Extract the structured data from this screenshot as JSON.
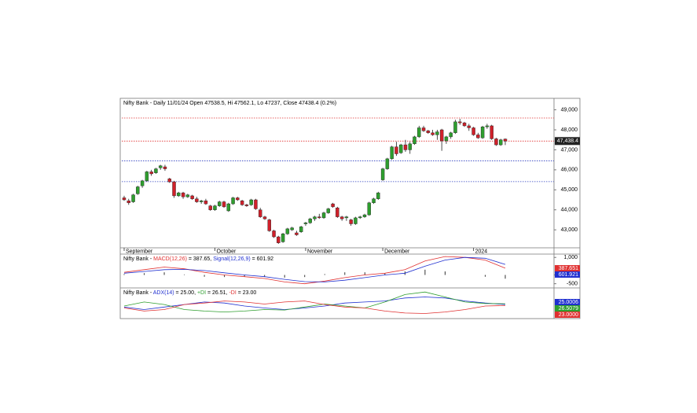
{
  "chart_data": [
    {
      "type": "candlestick",
      "title": "Nifty Bank - Daily 11/01/24 Open 47538.5, Hi 47562.1, Lo 47237, Close 47438.4 (0.2%)",
      "last_label": "47,438.4",
      "categories": [
        "September",
        null,
        null,
        null,
        null,
        null,
        null,
        null,
        null,
        null,
        null,
        null,
        null,
        null,
        null,
        null,
        null,
        null,
        null,
        null,
        "October",
        null,
        null,
        null,
        null,
        null,
        null,
        null,
        null,
        null,
        null,
        null,
        null,
        null,
        null,
        null,
        null,
        null,
        null,
        null,
        "November",
        null,
        null,
        null,
        null,
        null,
        null,
        null,
        null,
        null,
        null,
        null,
        null,
        null,
        null,
        null,
        null,
        "December",
        null,
        null,
        null,
        null,
        null,
        null,
        null,
        null,
        null,
        null,
        null,
        null,
        null,
        null,
        null,
        null,
        null,
        null,
        null,
        "2024",
        null,
        null,
        null,
        null,
        null,
        null,
        null
      ],
      "open": [
        44600,
        44450,
        44400,
        44800,
        45200,
        45450,
        45900,
        45850,
        46100,
        46150,
        45550,
        45400,
        44700,
        44850,
        44650,
        44700,
        44550,
        44400,
        44450,
        44200,
        44000,
        44200,
        44400,
        43950,
        44300,
        44600,
        44450,
        44250,
        44250,
        44500,
        44000,
        43650,
        43500,
        42950,
        42650,
        42400,
        42800,
        43000,
        42850,
        42900,
        43300,
        43350,
        43550,
        43650,
        43600,
        43850,
        44300,
        44100,
        43650,
        43600,
        43500,
        43300,
        43600,
        43650,
        43750,
        44350,
        44550,
        45500,
        46050,
        46550,
        47150,
        46850,
        47250,
        47000,
        47300,
        47650,
        48100,
        47950,
        47850,
        47750,
        48000,
        47450,
        47650,
        47850,
        48400,
        48350,
        48200,
        48100,
        47750,
        47600,
        48150,
        48200,
        47550,
        47250,
        47538.5
      ],
      "high": [
        44700,
        44550,
        44800,
        45200,
        45500,
        45950,
        46000,
        46100,
        46250,
        46250,
        45600,
        45450,
        44900,
        44900,
        44800,
        44750,
        44650,
        44500,
        44550,
        44250,
        44250,
        44450,
        44450,
        44350,
        44650,
        44650,
        44500,
        44300,
        44550,
        44550,
        44100,
        43700,
        43550,
        43000,
        42700,
        42850,
        43100,
        43150,
        42950,
        43200,
        43400,
        43600,
        43700,
        43800,
        43900,
        44100,
        44350,
        44150,
        43700,
        43700,
        43550,
        43650,
        43700,
        43800,
        44400,
        44600,
        44900,
        46100,
        46600,
        47200,
        47400,
        47300,
        47500,
        47400,
        47700,
        48200,
        48200,
        48000,
        48000,
        48000,
        48050,
        47700,
        47900,
        48500,
        48550,
        48400,
        48300,
        48150,
        47850,
        48200,
        48300,
        48250,
        47600,
        47550,
        47562.1
      ],
      "low": [
        44450,
        44250,
        44350,
        44750,
        45100,
        45400,
        45700,
        45800,
        46000,
        45950,
        45350,
        44600,
        44650,
        44550,
        44600,
        44500,
        44350,
        44300,
        44250,
        43950,
        43950,
        44150,
        44100,
        43900,
        44250,
        44450,
        44200,
        44150,
        44200,
        44000,
        43600,
        43500,
        42900,
        42600,
        42300,
        42350,
        42750,
        42950,
        42700,
        42850,
        43200,
        43300,
        43450,
        43550,
        43550,
        43800,
        44100,
        43600,
        43450,
        43450,
        43200,
        43250,
        43550,
        43600,
        43700,
        44300,
        44500,
        45450,
        46000,
        46500,
        46700,
        46800,
        46900,
        46800,
        47250,
        47600,
        47900,
        47800,
        47700,
        47500,
        46950,
        47300,
        47550,
        47800,
        48250,
        48150,
        47950,
        47700,
        47550,
        47550,
        48050,
        47500,
        47200,
        47200,
        47237
      ],
      "close": [
        44500,
        44350,
        44750,
        45150,
        45450,
        45900,
        45800,
        46050,
        46200,
        46050,
        45400,
        44700,
        44850,
        44650,
        44750,
        44550,
        44400,
        44450,
        44300,
        44000,
        44200,
        44400,
        44150,
        44300,
        44600,
        44500,
        44250,
        44200,
        44500,
        44050,
        43650,
        43550,
        42950,
        42650,
        42350,
        42800,
        43050,
        43100,
        42750,
        43150,
        43350,
        43550,
        43650,
        43600,
        43850,
        44050,
        44150,
        43650,
        43550,
        43650,
        43300,
        43600,
        43650,
        43750,
        44350,
        44550,
        44850,
        46050,
        46550,
        47150,
        46800,
        47250,
        47000,
        47300,
        47650,
        48100,
        47950,
        47850,
        47750,
        47900,
        47450,
        47650,
        47850,
        48400,
        48350,
        48200,
        48100,
        47750,
        47600,
        48150,
        48200,
        47550,
        47250,
        47500,
        47438.4
      ],
      "up_color": "#2e9e2e",
      "down_color": "#d0202a",
      "levels": [
        {
          "value": 48590,
          "color": "#e03030"
        },
        {
          "value": 47438.4,
          "color": "#e03030"
        },
        {
          "value": 46450,
          "color": "#3040c0"
        },
        {
          "value": 45410,
          "color": "#3040c0"
        }
      ],
      "ylim": [
        42180,
        49220
      ],
      "yticks": [
        {
          "value": 43000,
          "label": "43,000"
        },
        {
          "value": 44000,
          "label": "44,000"
        },
        {
          "value": 45000,
          "label": "45,000"
        },
        {
          "value": 46000,
          "label": "46,000"
        },
        {
          "value": 47000,
          "label": "47,000"
        },
        {
          "value": 48000,
          "label": "48,000"
        },
        {
          "value": 49000,
          "label": "49,000"
        }
      ]
    },
    {
      "type": "line",
      "title": "Nifty Bank - ",
      "series": [
        {
          "name": "MACD(12,26)",
          "reading": " = 387.65, ",
          "tag": "387.651",
          "color": "#e03030",
          "values": [
            150,
            300,
            450,
            350,
            150,
            0,
            -100,
            -200,
            -400,
            -500,
            -350,
            -150,
            0,
            100,
            300,
            800,
            1050,
            1000,
            850,
            387.65
          ]
        },
        {
          "name": "Signal(12,26,9)",
          "reading": " = 601.92",
          "tag": "601.921",
          "color": "#2030d0",
          "values": [
            100,
            200,
            300,
            320,
            250,
            120,
            0,
            -100,
            -250,
            -380,
            -400,
            -300,
            -150,
            0,
            100,
            500,
            850,
            1000,
            950,
            601.92
          ]
        }
      ],
      "histogram": [
        50,
        100,
        150,
        30,
        -100,
        -120,
        -100,
        -100,
        -150,
        -120,
        50,
        150,
        150,
        100,
        200,
        300,
        200,
        0,
        -100,
        -214
      ],
      "ylim": [
        -650,
        1100
      ],
      "yticks": [
        {
          "value": 1000,
          "label": "1,000"
        },
        0,
        -500
      ]
    },
    {
      "type": "line",
      "title": "Nifty Bank - ",
      "series": [
        {
          "name": "ADX(14)",
          "reading": " = 25.00, ",
          "tag": "25.0006",
          "color": "#2030d0",
          "values": [
            20,
            15,
            20,
            25,
            30,
            28,
            22,
            18,
            15,
            18,
            22,
            28,
            30,
            32,
            38,
            40,
            38,
            32,
            28,
            25.0
          ]
        },
        {
          "name": "+DI",
          "reading": " = 26.51, ",
          "tag": "26.5079",
          "color": "#2e9e2e",
          "values": [
            22,
            30,
            25,
            15,
            12,
            10,
            12,
            15,
            14,
            20,
            26,
            22,
            18,
            30,
            45,
            50,
            40,
            30,
            27,
            26.51
          ]
        },
        {
          "name": "-DI",
          "reading": " = 23.00",
          "tag": "23.0000",
          "color": "#e03030",
          "values": [
            18,
            12,
            15,
            25,
            28,
            32,
            30,
            26,
            30,
            32,
            25,
            20,
            18,
            12,
            8,
            7,
            10,
            15,
            22,
            23.0
          ]
        }
      ],
      "ylim": [
        0,
        55
      ]
    }
  ]
}
